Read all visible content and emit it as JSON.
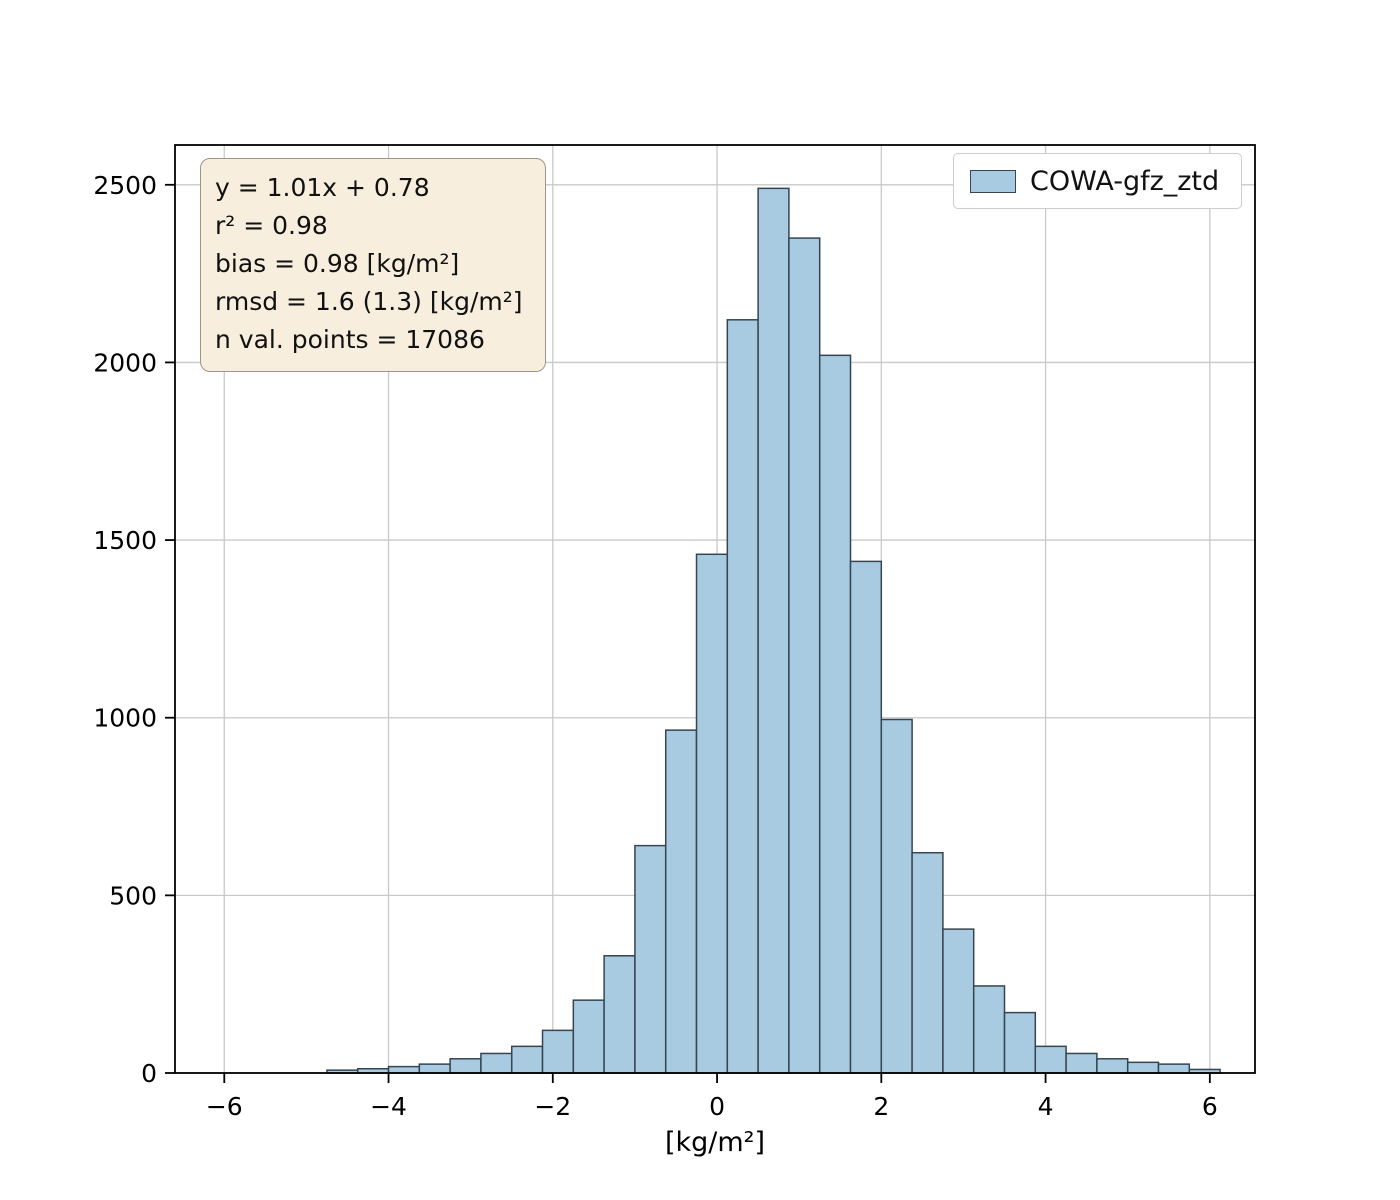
{
  "chart_data": {
    "type": "bar",
    "subtype": "histogram",
    "title": "",
    "xlabel": "[kg/m²]",
    "ylabel": "",
    "xlim": [
      -6.6,
      6.55
    ],
    "ylim": [
      0,
      2612
    ],
    "grid": true,
    "legend_position": "upper right",
    "bar_fill": "#a8cbe2",
    "bar_edge": "#36454f",
    "grid_color": "#c9c9c9",
    "spine_color": "#000000",
    "xticks": [
      {
        "value": -6,
        "label": "−6"
      },
      {
        "value": -4,
        "label": "−4"
      },
      {
        "value": -2,
        "label": "−2"
      },
      {
        "value": 0,
        "label": "0"
      },
      {
        "value": 2,
        "label": "2"
      },
      {
        "value": 4,
        "label": "4"
      },
      {
        "value": 6,
        "label": "6"
      }
    ],
    "yticks": [
      {
        "value": 0,
        "label": "0"
      },
      {
        "value": 500,
        "label": "500"
      },
      {
        "value": 1000,
        "label": "1000"
      },
      {
        "value": 1500,
        "label": "1500"
      },
      {
        "value": 2000,
        "label": "2000"
      },
      {
        "value": 2500,
        "label": "2500"
      }
    ],
    "series": [
      {
        "name": "COWA-gfz_ztd",
        "bin_edges": [
          -4.75,
          -4.375,
          -4.0,
          -3.625,
          -3.25,
          -2.875,
          -2.5,
          -2.125,
          -1.75,
          -1.375,
          -1.0,
          -0.625,
          -0.25,
          0.125,
          0.5,
          0.875,
          1.25,
          1.625,
          2.0,
          2.375,
          2.75,
          3.125,
          3.5,
          3.875,
          4.25,
          4.625,
          5.0,
          5.375,
          5.75,
          6.125
        ],
        "values": [
          8,
          12,
          18,
          25,
          40,
          55,
          75,
          120,
          205,
          330,
          640,
          965,
          1460,
          2120,
          2490,
          2350,
          2020,
          1440,
          995,
          620,
          405,
          245,
          170,
          75,
          55,
          40,
          30,
          25,
          10
        ]
      }
    ],
    "legend": {
      "label": "COWA-gfz_ztd"
    },
    "annotation": {
      "background": "#f7eedd",
      "border": "#9c968a",
      "lines": [
        "y = 1.01x + 0.78",
        "r² = 0.98",
        "bias = 0.98 [kg/m²]",
        "rmsd = 1.6 (1.3) [kg/m²]",
        "n val. points = 17086"
      ]
    }
  }
}
